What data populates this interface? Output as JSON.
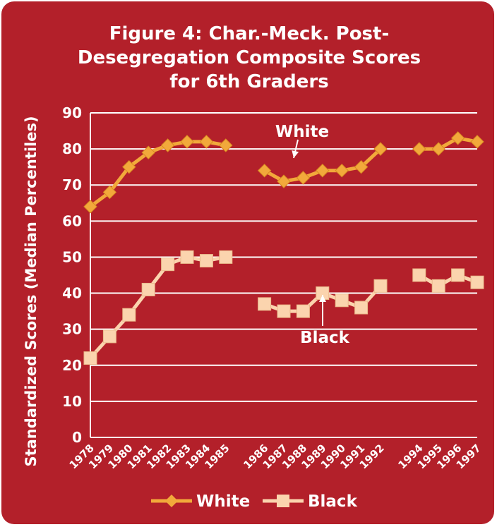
{
  "chart_data": {
    "type": "line",
    "title_lines": [
      "Figure 4: Char.-Meck. Post-",
      "Desegregation Composite Scores",
      "for 6th Graders"
    ],
    "xlabel": "",
    "ylabel": "Standardized Scores (Median Percentiles)",
    "ylim": [
      0,
      90
    ],
    "yticks": [
      0,
      10,
      20,
      30,
      40,
      50,
      60,
      70,
      80,
      90
    ],
    "categories": [
      "1978",
      "1979",
      "1980",
      "1981",
      "1982",
      "1983",
      "1984",
      "1985",
      "",
      "1986",
      "1987",
      "1988",
      "1989",
      "1990",
      "1991",
      "1992",
      "",
      "1994",
      "1995",
      "1996",
      "1997"
    ],
    "grid": true,
    "legend_position": "bottom",
    "series": [
      {
        "name": "White",
        "marker": "diamond",
        "color": "#f2a93b",
        "values": [
          64,
          68,
          75,
          79,
          81,
          82,
          82,
          81,
          null,
          74,
          71,
          72,
          74,
          74,
          75,
          80,
          null,
          80,
          80,
          83,
          82
        ]
      },
      {
        "name": "Black",
        "marker": "square",
        "color": "#fbd4ae",
        "values": [
          22,
          28,
          34,
          41,
          48,
          50,
          49,
          50,
          null,
          37,
          35,
          35,
          40,
          38,
          36,
          42,
          null,
          45,
          42,
          45,
          43
        ]
      }
    ],
    "annotations": [
      {
        "text": "White",
        "points_to": {
          "x": "1987",
          "y": 73
        }
      },
      {
        "text": "Black",
        "points_to": {
          "x": "1989",
          "y": 40
        }
      }
    ]
  }
}
